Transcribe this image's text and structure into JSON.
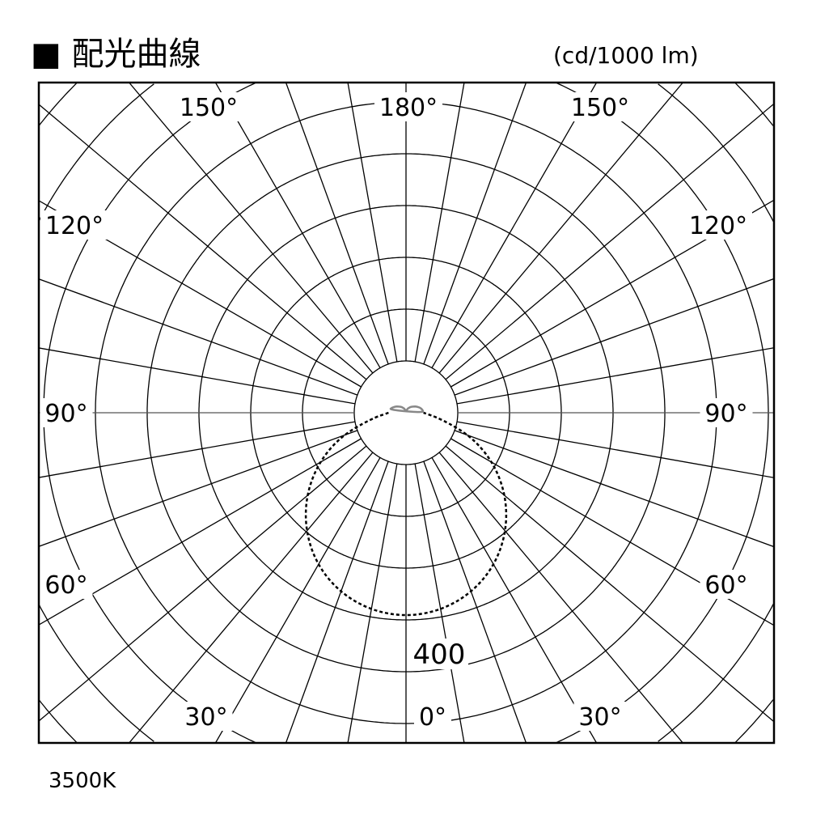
{
  "title": "■ 配光曲線",
  "unit": "(cd/1000 lm)",
  "color_temperature": "3500K",
  "chart_data": {
    "type": "polar-line",
    "title": "配光曲線",
    "unit": "cd/1000 lm",
    "radial_step": 80,
    "radial_max_visible": 800,
    "radial_tick_label": "400",
    "radial_tick_value": 400,
    "angle_grid_step_deg": 10,
    "angle_labels": [
      "180°",
      "150°",
      "150°",
      "120°",
      "120°",
      "90°",
      "90°",
      "60°",
      "60°",
      "30°",
      "30°",
      "0°"
    ],
    "grid": true,
    "series": [
      {
        "style": "dashed",
        "color": "#000000",
        "upper_color": "#888888",
        "angles_deg": [
          0,
          10,
          20,
          30,
          40,
          50,
          60,
          70,
          80,
          90,
          100,
          110,
          120,
          130,
          140,
          150,
          160,
          170,
          180
        ],
        "values": [
          315,
          310,
          296,
          273,
          241,
          202,
          157,
          108,
          55,
          27,
          26,
          23,
          19,
          15,
          12,
          9,
          6,
          3,
          2
        ]
      }
    ]
  }
}
